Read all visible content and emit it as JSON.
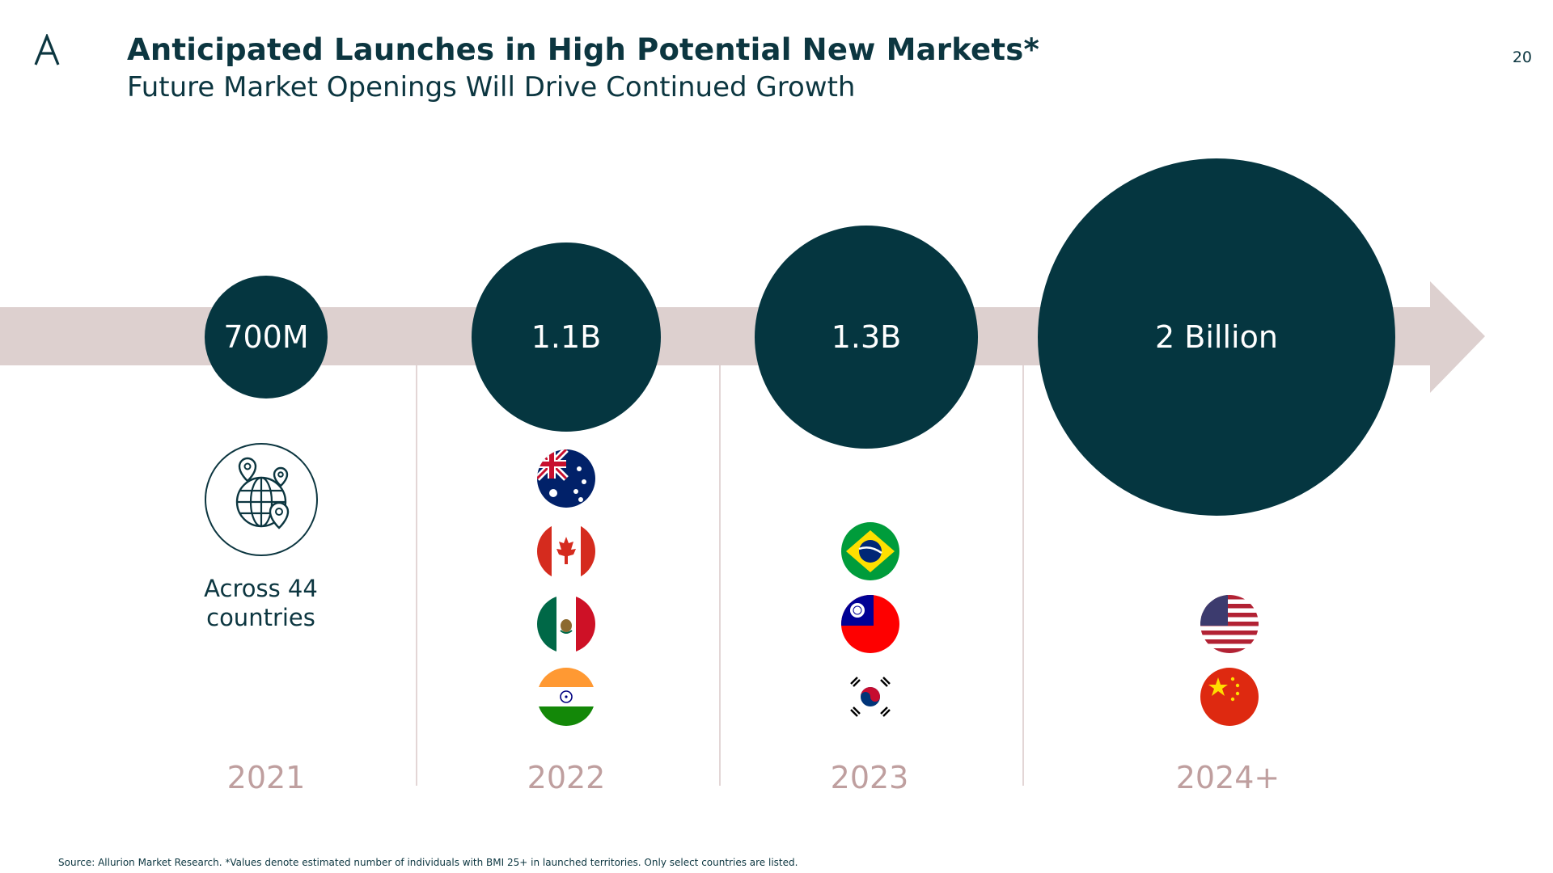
{
  "header": {
    "title": "Anticipated Launches in High Potential New Markets*",
    "subtitle": "Future Market Openings Will Drive Continued Growth",
    "page_number": "20"
  },
  "colors": {
    "dark_teal": "#053640",
    "arrow_pink": "#ddd0cf",
    "year_pink": "#bf9f9f"
  },
  "timeline": [
    {
      "value": "700M",
      "year": "2021",
      "note": "Across 44 countries",
      "icon": "globe-pin-icon",
      "flags": []
    },
    {
      "value": "1.1B",
      "year": "2022",
      "flags": [
        "australia",
        "canada",
        "mexico",
        "india"
      ]
    },
    {
      "value": "1.3B",
      "year": "2023",
      "flags": [
        "brazil",
        "taiwan",
        "south-korea"
      ]
    },
    {
      "value": "2 Billion",
      "year": "2024+",
      "flags": [
        "united-states",
        "china"
      ]
    }
  ],
  "footer": {
    "source": "Source: Allurion Market Research. *Values denote estimated number of individuals with BMI 25+ in launched territories. Only select countries are listed."
  }
}
